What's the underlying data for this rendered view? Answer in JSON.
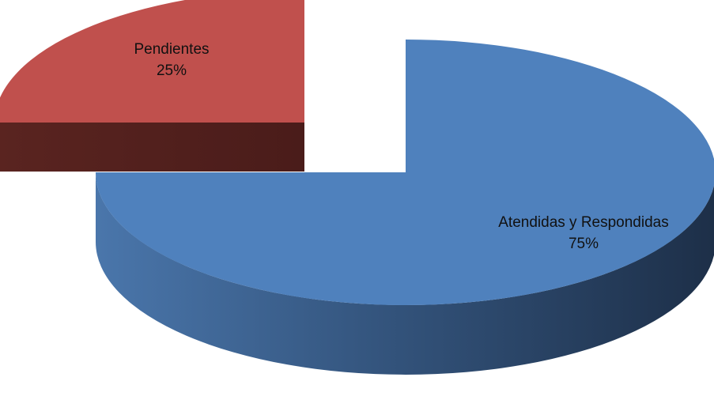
{
  "chart_data": {
    "type": "pie",
    "style": "3d-exploded",
    "slices": [
      {
        "label": "Atendidas y Respondidas",
        "value": 75,
        "value_label": "75%",
        "color": "#4f81bd"
      },
      {
        "label": "Pendientes",
        "value": 25,
        "value_label": "25%",
        "color": "#c0504d"
      }
    ],
    "legend": "none"
  }
}
